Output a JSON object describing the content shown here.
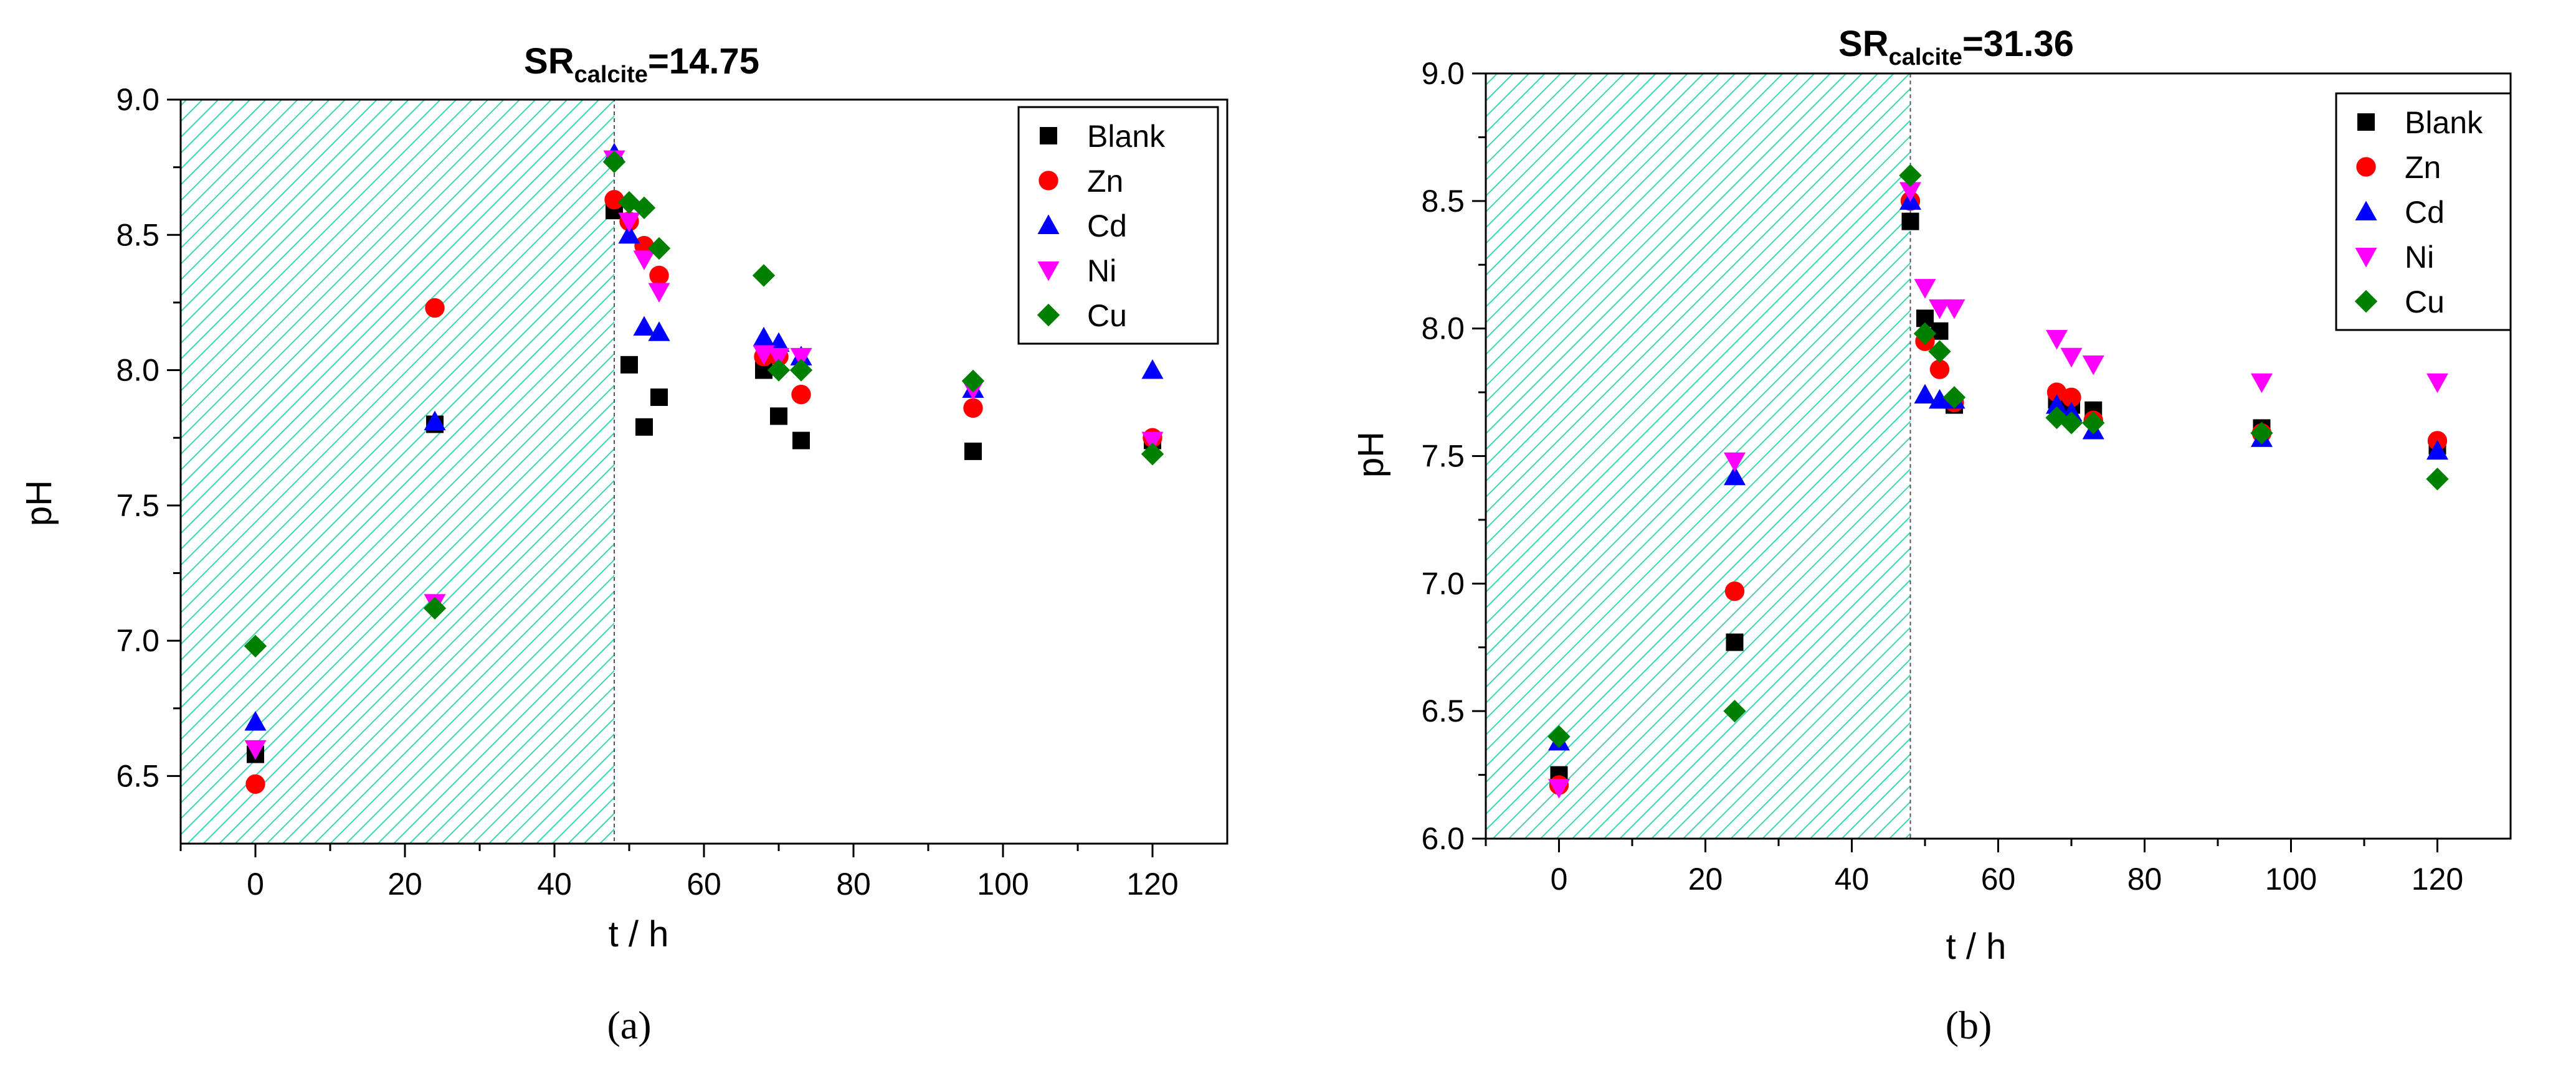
{
  "chart_data": [
    {
      "type": "scatter",
      "panel_label": "(a)",
      "title": {
        "main": "SR",
        "sub": "calcite",
        "value": "=14.75"
      },
      "xlabel": "t / h",
      "ylabel": "pH",
      "xlim": [
        -10,
        130
      ],
      "ylim": [
        6.25,
        9.0
      ],
      "xticks": [
        0,
        20,
        40,
        60,
        80,
        100,
        120
      ],
      "xtick_labels": [
        "0",
        "20",
        "40",
        "60",
        "80",
        "100",
        "120"
      ],
      "yticks": [
        6.5,
        7.0,
        7.5,
        8.0,
        8.5,
        9.0
      ],
      "ytick_labels": [
        "6.5",
        "7.0",
        "7.5",
        "8.0",
        "8.5",
        "9.0"
      ],
      "shaded_region": {
        "x_from": -10,
        "x_to": 48,
        "color": "#3dd6b4"
      },
      "legend_position": "top-right",
      "series": [
        {
          "name": "Blank",
          "marker": "square",
          "color": "#000000",
          "points": [
            [
              0,
              6.58
            ],
            [
              24,
              7.8
            ],
            [
              48,
              8.59
            ],
            [
              50,
              8.02
            ],
            [
              52,
              7.79
            ],
            [
              54,
              7.9
            ],
            [
              68,
              8.0
            ],
            [
              70,
              7.83
            ],
            [
              73,
              7.74
            ],
            [
              96,
              7.7
            ],
            [
              120,
              7.74
            ]
          ]
        },
        {
          "name": "Zn",
          "marker": "circle",
          "color": "#ff0000",
          "points": [
            [
              0,
              6.47
            ],
            [
              24,
              8.23
            ],
            [
              48,
              8.63
            ],
            [
              50,
              8.55
            ],
            [
              52,
              8.46
            ],
            [
              54,
              8.35
            ],
            [
              68,
              8.05
            ],
            [
              70,
              8.05
            ],
            [
              73,
              7.91
            ],
            [
              96,
              7.86
            ],
            [
              120,
              7.75
            ]
          ]
        },
        {
          "name": "Cd",
          "marker": "triangle-up",
          "color": "#0000ff",
          "points": [
            [
              0,
              6.7
            ],
            [
              24,
              7.81
            ],
            [
              48,
              8.8
            ],
            [
              50,
              8.5
            ],
            [
              52,
              8.16
            ],
            [
              54,
              8.14
            ],
            [
              68,
              8.12
            ],
            [
              70,
              8.1
            ],
            [
              73,
              8.05
            ],
            [
              96,
              7.93
            ],
            [
              120,
              8.0
            ]
          ]
        },
        {
          "name": "Ni",
          "marker": "triangle-down",
          "color": "#ff00ff",
          "points": [
            [
              0,
              6.6
            ],
            [
              24,
              7.14
            ],
            [
              48,
              8.78
            ],
            [
              50,
              8.55
            ],
            [
              52,
              8.41
            ],
            [
              54,
              8.29
            ],
            [
              68,
              8.06
            ],
            [
              70,
              8.05
            ],
            [
              73,
              8.05
            ],
            [
              96,
              7.93
            ],
            [
              120,
              7.74
            ]
          ]
        },
        {
          "name": "Cu",
          "marker": "diamond",
          "color": "#008000",
          "points": [
            [
              0,
              6.98
            ],
            [
              24,
              7.12
            ],
            [
              48,
              8.77
            ],
            [
              50,
              8.62
            ],
            [
              52,
              8.6
            ],
            [
              54,
              8.45
            ],
            [
              68,
              8.35
            ],
            [
              70,
              8.0
            ],
            [
              73,
              8.0
            ],
            [
              96,
              7.96
            ],
            [
              120,
              7.69
            ]
          ]
        }
      ]
    },
    {
      "type": "scatter",
      "panel_label": "(b)",
      "title": {
        "main": "SR",
        "sub": "calcite",
        "value": "=31.36"
      },
      "xlabel": "t / h",
      "ylabel": "pH",
      "xlim": [
        -10,
        130
      ],
      "ylim": [
        6.0,
        9.0
      ],
      "xticks": [
        0,
        20,
        40,
        60,
        80,
        100,
        120
      ],
      "xtick_labels": [
        "0",
        "20",
        "40",
        "60",
        "80",
        "100",
        "120"
      ],
      "yticks": [
        6.0,
        6.5,
        7.0,
        7.5,
        8.0,
        8.5,
        9.0
      ],
      "ytick_labels": [
        "6.0",
        "6.5",
        "7.0",
        "7.5",
        "8.0",
        "8.5",
        "9.0"
      ],
      "shaded_region": {
        "x_from": -10,
        "x_to": 48,
        "color": "#3dd6b4"
      },
      "legend_position": "top-right",
      "series": [
        {
          "name": "Blank",
          "marker": "square",
          "color": "#000000",
          "points": [
            [
              0,
              6.25
            ],
            [
              24,
              6.77
            ],
            [
              48,
              8.42
            ],
            [
              50,
              8.04
            ],
            [
              52,
              7.99
            ],
            [
              54,
              7.7
            ],
            [
              68,
              7.72
            ],
            [
              70,
              7.7
            ],
            [
              73,
              7.68
            ],
            [
              96,
              7.61
            ],
            [
              120,
              7.54
            ]
          ]
        },
        {
          "name": "Zn",
          "marker": "circle",
          "color": "#ff0000",
          "points": [
            [
              0,
              6.21
            ],
            [
              24,
              6.97
            ],
            [
              48,
              8.5
            ],
            [
              50,
              7.95
            ],
            [
              52,
              7.84
            ],
            [
              54,
              7.71
            ],
            [
              68,
              7.75
            ],
            [
              70,
              7.73
            ],
            [
              73,
              7.64
            ],
            [
              96,
              7.59
            ],
            [
              120,
              7.56
            ]
          ]
        },
        {
          "name": "Cd",
          "marker": "triangle-up",
          "color": "#0000ff",
          "points": [
            [
              0,
              6.38
            ],
            [
              24,
              7.42
            ],
            [
              48,
              8.5
            ],
            [
              50,
              7.74
            ],
            [
              52,
              7.72
            ],
            [
              54,
              7.72
            ],
            [
              68,
              7.7
            ],
            [
              70,
              7.67
            ],
            [
              73,
              7.6
            ],
            [
              96,
              7.57
            ],
            [
              120,
              7.52
            ]
          ]
        },
        {
          "name": "Ni",
          "marker": "triangle-down",
          "color": "#ff00ff",
          "points": [
            [
              0,
              6.2
            ],
            [
              24,
              7.48
            ],
            [
              48,
              8.54
            ],
            [
              50,
              8.16
            ],
            [
              52,
              8.08
            ],
            [
              54,
              8.08
            ],
            [
              68,
              7.96
            ],
            [
              70,
              7.89
            ],
            [
              73,
              7.86
            ],
            [
              96,
              7.79
            ],
            [
              120,
              7.79
            ]
          ]
        },
        {
          "name": "Cu",
          "marker": "diamond",
          "color": "#008000",
          "points": [
            [
              0,
              6.4
            ],
            [
              24,
              6.5
            ],
            [
              48,
              8.6
            ],
            [
              50,
              7.98
            ],
            [
              52,
              7.91
            ],
            [
              54,
              7.73
            ],
            [
              68,
              7.65
            ],
            [
              70,
              7.63
            ],
            [
              73,
              7.63
            ],
            [
              96,
              7.59
            ],
            [
              120,
              7.41
            ]
          ]
        }
      ]
    }
  ]
}
